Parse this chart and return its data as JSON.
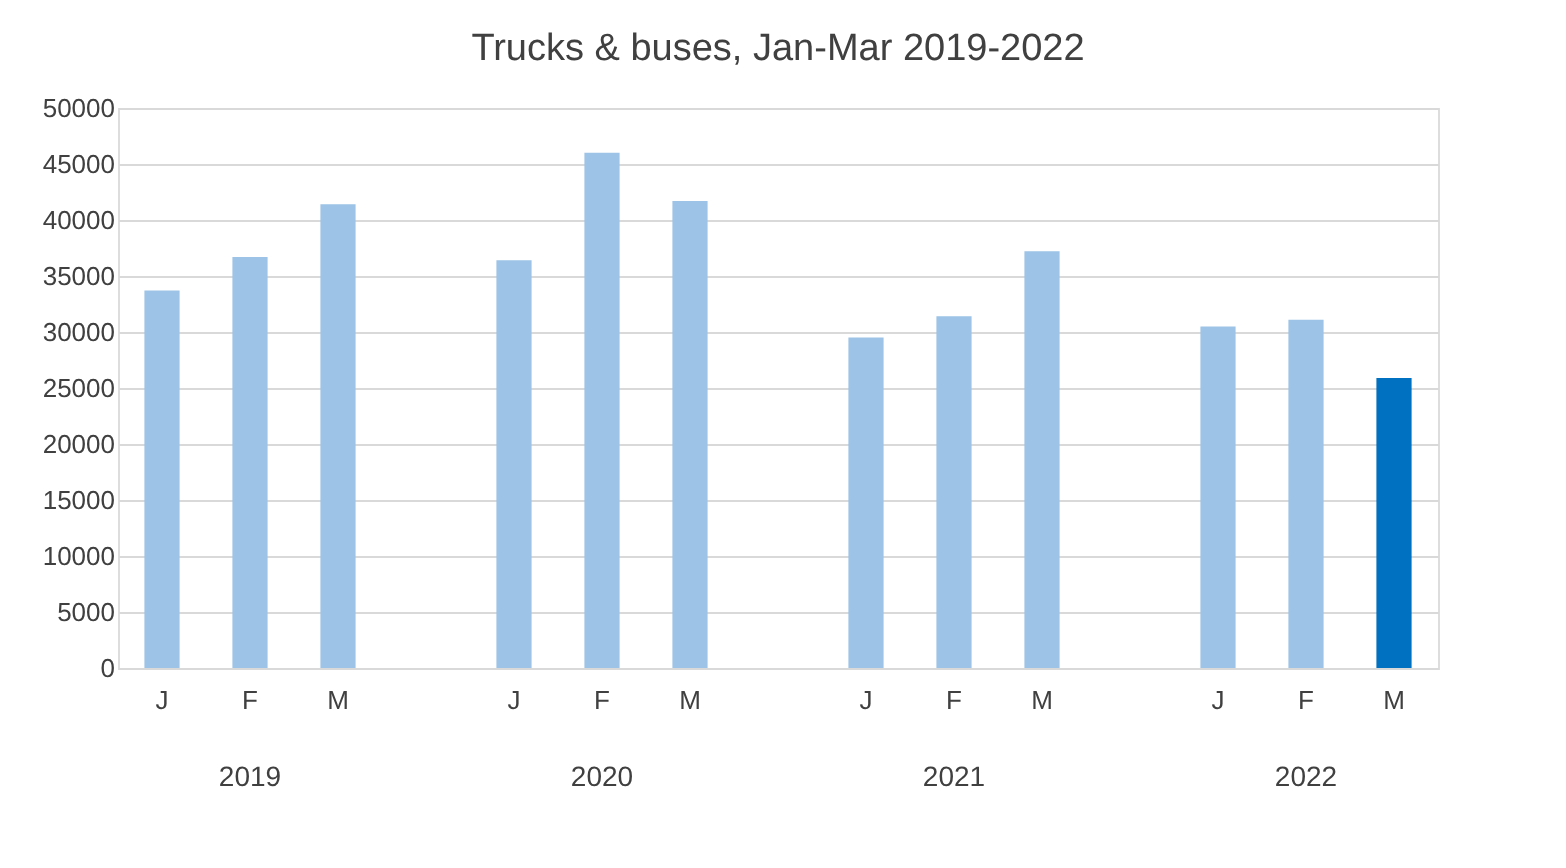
{
  "chart_data": {
    "type": "bar",
    "title": "Trucks & buses, Jan-Mar 2019-2022",
    "categories": [
      "J",
      "F",
      "M",
      null,
      "J",
      "F",
      "M",
      null,
      "J",
      "F",
      "M",
      null,
      "J",
      "F",
      "M"
    ],
    "values": [
      33700,
      36700,
      41400,
      null,
      36400,
      46000,
      41700,
      null,
      29500,
      31400,
      37200,
      null,
      30500,
      31100,
      25900
    ],
    "colors": [
      "#9dc3e6",
      "#9dc3e6",
      "#9dc3e6",
      null,
      "#9dc3e6",
      "#9dc3e6",
      "#9dc3e6",
      null,
      "#9dc3e6",
      "#9dc3e6",
      "#9dc3e6",
      null,
      "#9dc3e6",
      "#9dc3e6",
      "#0070c0"
    ],
    "ylim": [
      0,
      50000
    ],
    "yticks": [
      0,
      5000,
      10000,
      15000,
      20000,
      25000,
      30000,
      35000,
      40000,
      45000,
      50000
    ],
    "grid": "y",
    "annotations": [
      "2019",
      "2020",
      "2021",
      "2022"
    ]
  }
}
